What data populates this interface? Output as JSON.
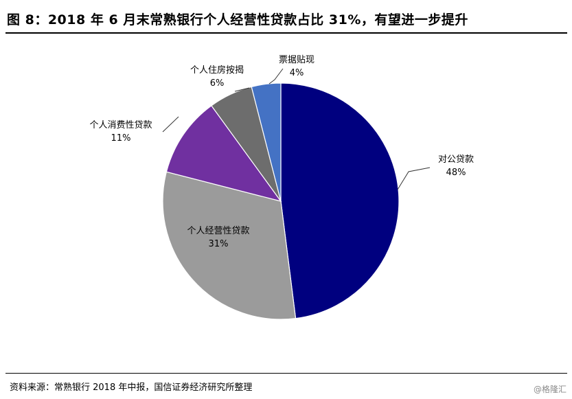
{
  "title": "图 8：2018 年 6 月末常熟银行个人经营性贷款占比 31%，有望进一步提升",
  "source": "资料来源：常熟银行 2018 年中报，国信证券经济研究所整理",
  "watermark": "@格隆汇",
  "chart_data": {
    "type": "pie",
    "start_angle_deg": 0,
    "direction": "clockwise",
    "slices": [
      {
        "label": "对公贷款",
        "value": 48,
        "value_label": "48%",
        "color": "#00007f",
        "label_placement": "outside-leader"
      },
      {
        "label": "个人经营性贷款",
        "value": 31,
        "value_label": "31%",
        "color": "#9b9b9b",
        "label_placement": "inside"
      },
      {
        "label": "个人消费性贷款",
        "value": 11,
        "value_label": "11%",
        "color": "#7030a0",
        "label_placement": "outside-leader"
      },
      {
        "label": "个人住房按揭",
        "value": 6,
        "value_label": "6%",
        "color": "#6d6d6d",
        "label_placement": "outside-leader"
      },
      {
        "label": "票据贴现",
        "value": 4,
        "value_label": "4%",
        "color": "#4472c4",
        "label_placement": "outside-leader"
      }
    ]
  }
}
